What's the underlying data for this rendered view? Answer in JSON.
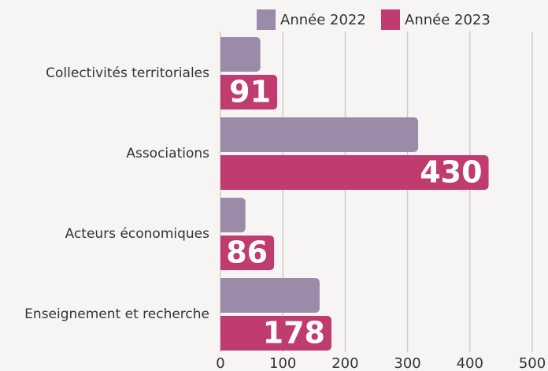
{
  "chart_data": {
    "type": "bar",
    "orientation": "horizontal",
    "categories": [
      "Collectivités territoriales",
      "Associations",
      "Acteurs économiques",
      "Enseignement et recherche"
    ],
    "series": [
      {
        "name": "Année 2022",
        "color": "#9b8aa8",
        "values": [
          64,
          317,
          40,
          159
        ]
      },
      {
        "name": "Année 2023",
        "color": "#c03b6f",
        "values": [
          91,
          430,
          86,
          178
        ],
        "show_labels": true
      }
    ],
    "xlim": [
      0,
      500
    ],
    "xticks": [
      0,
      100,
      200,
      300,
      400,
      500
    ],
    "grid": true,
    "legend": "top"
  }
}
